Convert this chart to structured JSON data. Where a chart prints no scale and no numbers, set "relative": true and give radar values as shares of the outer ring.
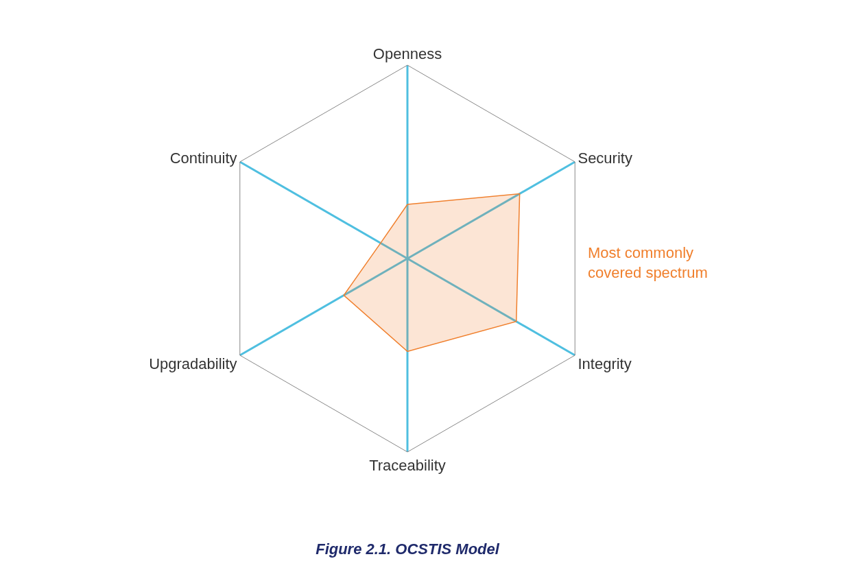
{
  "chart_data": {
    "type": "radar",
    "title": "Figure 2.1. OCSTIS Model",
    "relative": true,
    "categories": [
      "Openness",
      "Security",
      "Integrity",
      "Traceability",
      "Upgradability",
      "Continuity"
    ],
    "series": [
      {
        "color": "#f07f2c",
        "values": [
          0.28,
          0.67,
          0.65,
          0.48,
          0.38,
          0.16
        ]
      }
    ],
    "annotations": [
      "Most commonly\ncovered spectrum"
    ],
    "grid": true,
    "marker": "none"
  }
}
